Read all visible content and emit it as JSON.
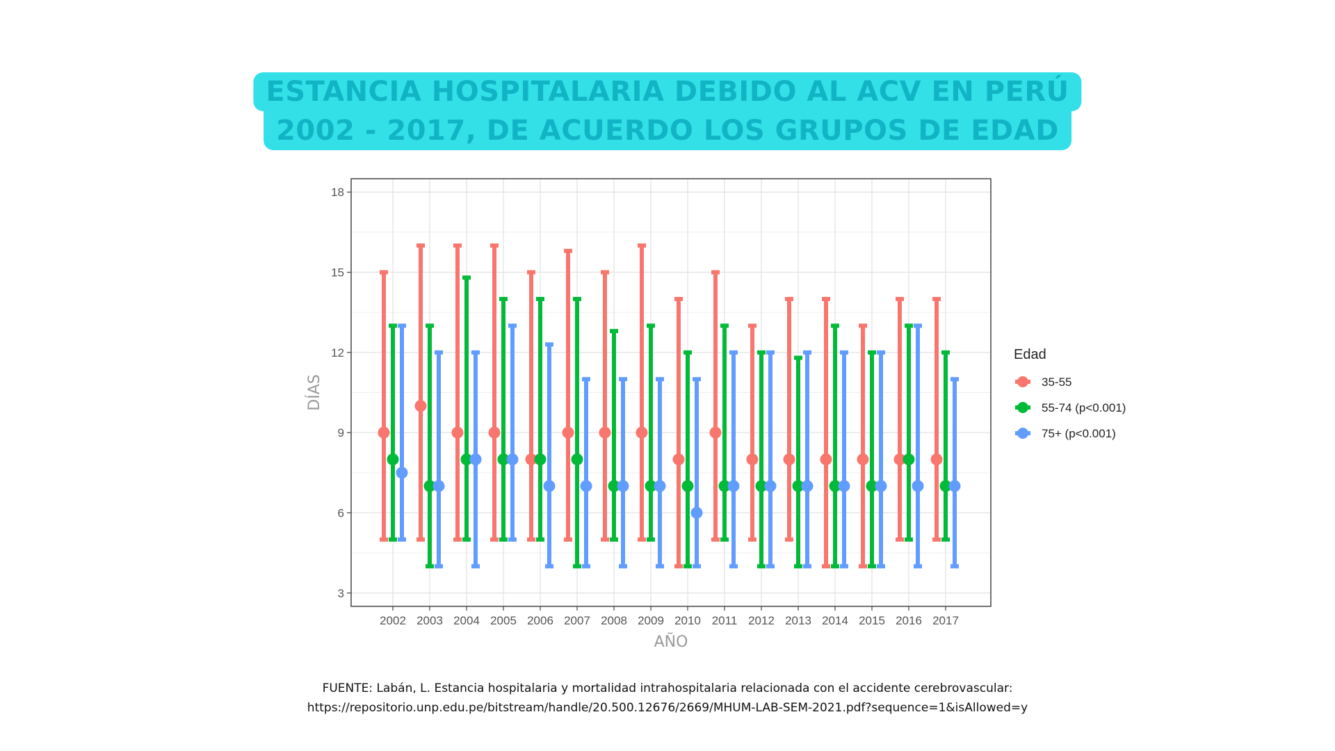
{
  "title": {
    "line1": "ESTANCIA HOSPITALARIA DEBIDO AL ACV EN PERÚ",
    "line2": "2002 - 2017, DE ACUERDO LOS GRUPOS DE EDAD"
  },
  "source": {
    "line1": "FUENTE: Labán, L. Estancia hospitalaria y mortalidad intrahospitalaria relacionada con el accidente cerebrovascular:",
    "line2": "https://repositorio.unp.edu.pe/bitstream/handle/20.500.12676/2669/MHUM-LAB-SEM-2021.pdf?sequence=1&isAllowed=y"
  },
  "chart_data": {
    "type": "errorbar",
    "xlabel": "AÑO",
    "ylabel": "DÍAS",
    "ylim": [
      2.5,
      18.5
    ],
    "yticks": [
      3,
      6,
      9,
      12,
      15,
      18
    ],
    "grid": true,
    "legend_title": "Edad",
    "legend_position": "right",
    "categories": [
      "2002",
      "2003",
      "2004",
      "2005",
      "2006",
      "2007",
      "2008",
      "2009",
      "2010",
      "2011",
      "2012",
      "2013",
      "2014",
      "2015",
      "2016",
      "2017"
    ],
    "series": [
      {
        "name": "35-55",
        "color": "#f8766d",
        "center": [
          9,
          10,
          9,
          9,
          8,
          9,
          9,
          9,
          8,
          9,
          8,
          8,
          8,
          8,
          8,
          8
        ],
        "low": [
          5,
          5,
          5,
          5,
          5,
          5,
          5,
          5,
          4,
          5,
          5,
          5,
          4,
          4,
          5,
          5
        ],
        "high": [
          15,
          16,
          16,
          16,
          15,
          15.8,
          15,
          16,
          14,
          15,
          13,
          14,
          14,
          13,
          14,
          14
        ]
      },
      {
        "name": "55-74 (p<0.001)",
        "color": "#00ba38",
        "center": [
          8,
          7,
          8,
          8,
          8,
          8,
          7,
          7,
          7,
          7,
          7,
          7,
          7,
          7,
          8,
          7
        ],
        "low": [
          5,
          4,
          5,
          5,
          5,
          4,
          5,
          5,
          4,
          5,
          4,
          4,
          4,
          4,
          5,
          5
        ],
        "high": [
          13,
          13,
          14.8,
          14,
          14,
          14,
          12.8,
          13,
          12,
          13,
          12,
          11.8,
          13,
          12,
          13,
          12
        ]
      },
      {
        "name": "75+ (p<0.001)",
        "color": "#619cff",
        "center": [
          7.5,
          7,
          8,
          8,
          7,
          7,
          7,
          7,
          6,
          7,
          7,
          7,
          7,
          7,
          7,
          7
        ],
        "low": [
          5,
          4,
          4,
          5,
          4,
          4,
          4,
          4,
          4,
          4,
          4,
          4,
          4,
          4,
          4,
          4
        ],
        "high": [
          13,
          12,
          12,
          13,
          12.3,
          11,
          11,
          11,
          11,
          12,
          12,
          12,
          12,
          12,
          13,
          11
        ]
      }
    ]
  }
}
